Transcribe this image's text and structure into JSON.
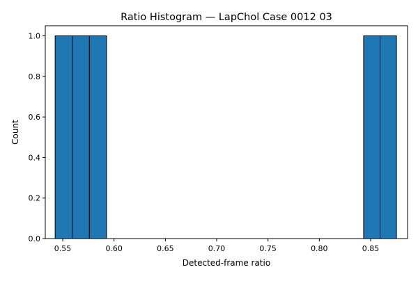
{
  "chart_data": {
    "type": "bar",
    "subtype": "histogram",
    "title": "Ratio Histogram — LapChol Case 0012 03",
    "xlabel": "Detected-frame ratio",
    "ylabel": "Count",
    "xlim": [
      0.533,
      0.886
    ],
    "ylim": [
      0.0,
      1.05
    ],
    "x_ticks": [
      "0.55",
      "0.60",
      "0.65",
      "0.70",
      "0.75",
      "0.80",
      "0.85"
    ],
    "x_tick_values": [
      0.55,
      0.6,
      0.65,
      0.7,
      0.75,
      0.8,
      0.85
    ],
    "y_ticks": [
      "0.0",
      "0.2",
      "0.4",
      "0.6",
      "0.8",
      "1.0"
    ],
    "y_tick_values": [
      0.0,
      0.2,
      0.4,
      0.6,
      0.8,
      1.0
    ],
    "bins": [
      {
        "x0": 0.5426,
        "x1": 0.5593,
        "count": 1
      },
      {
        "x0": 0.5593,
        "x1": 0.576,
        "count": 1
      },
      {
        "x0": 0.576,
        "x1": 0.5927,
        "count": 1
      },
      {
        "x0": 0.8432,
        "x1": 0.8592,
        "count": 1
      },
      {
        "x0": 0.8592,
        "x1": 0.8752,
        "count": 1
      }
    ],
    "grid": false,
    "legend": "none",
    "colors": {
      "bar_fill": "#1f77b4",
      "bar_edge": "#000000",
      "axis": "#000000",
      "background": "#ffffff"
    }
  }
}
